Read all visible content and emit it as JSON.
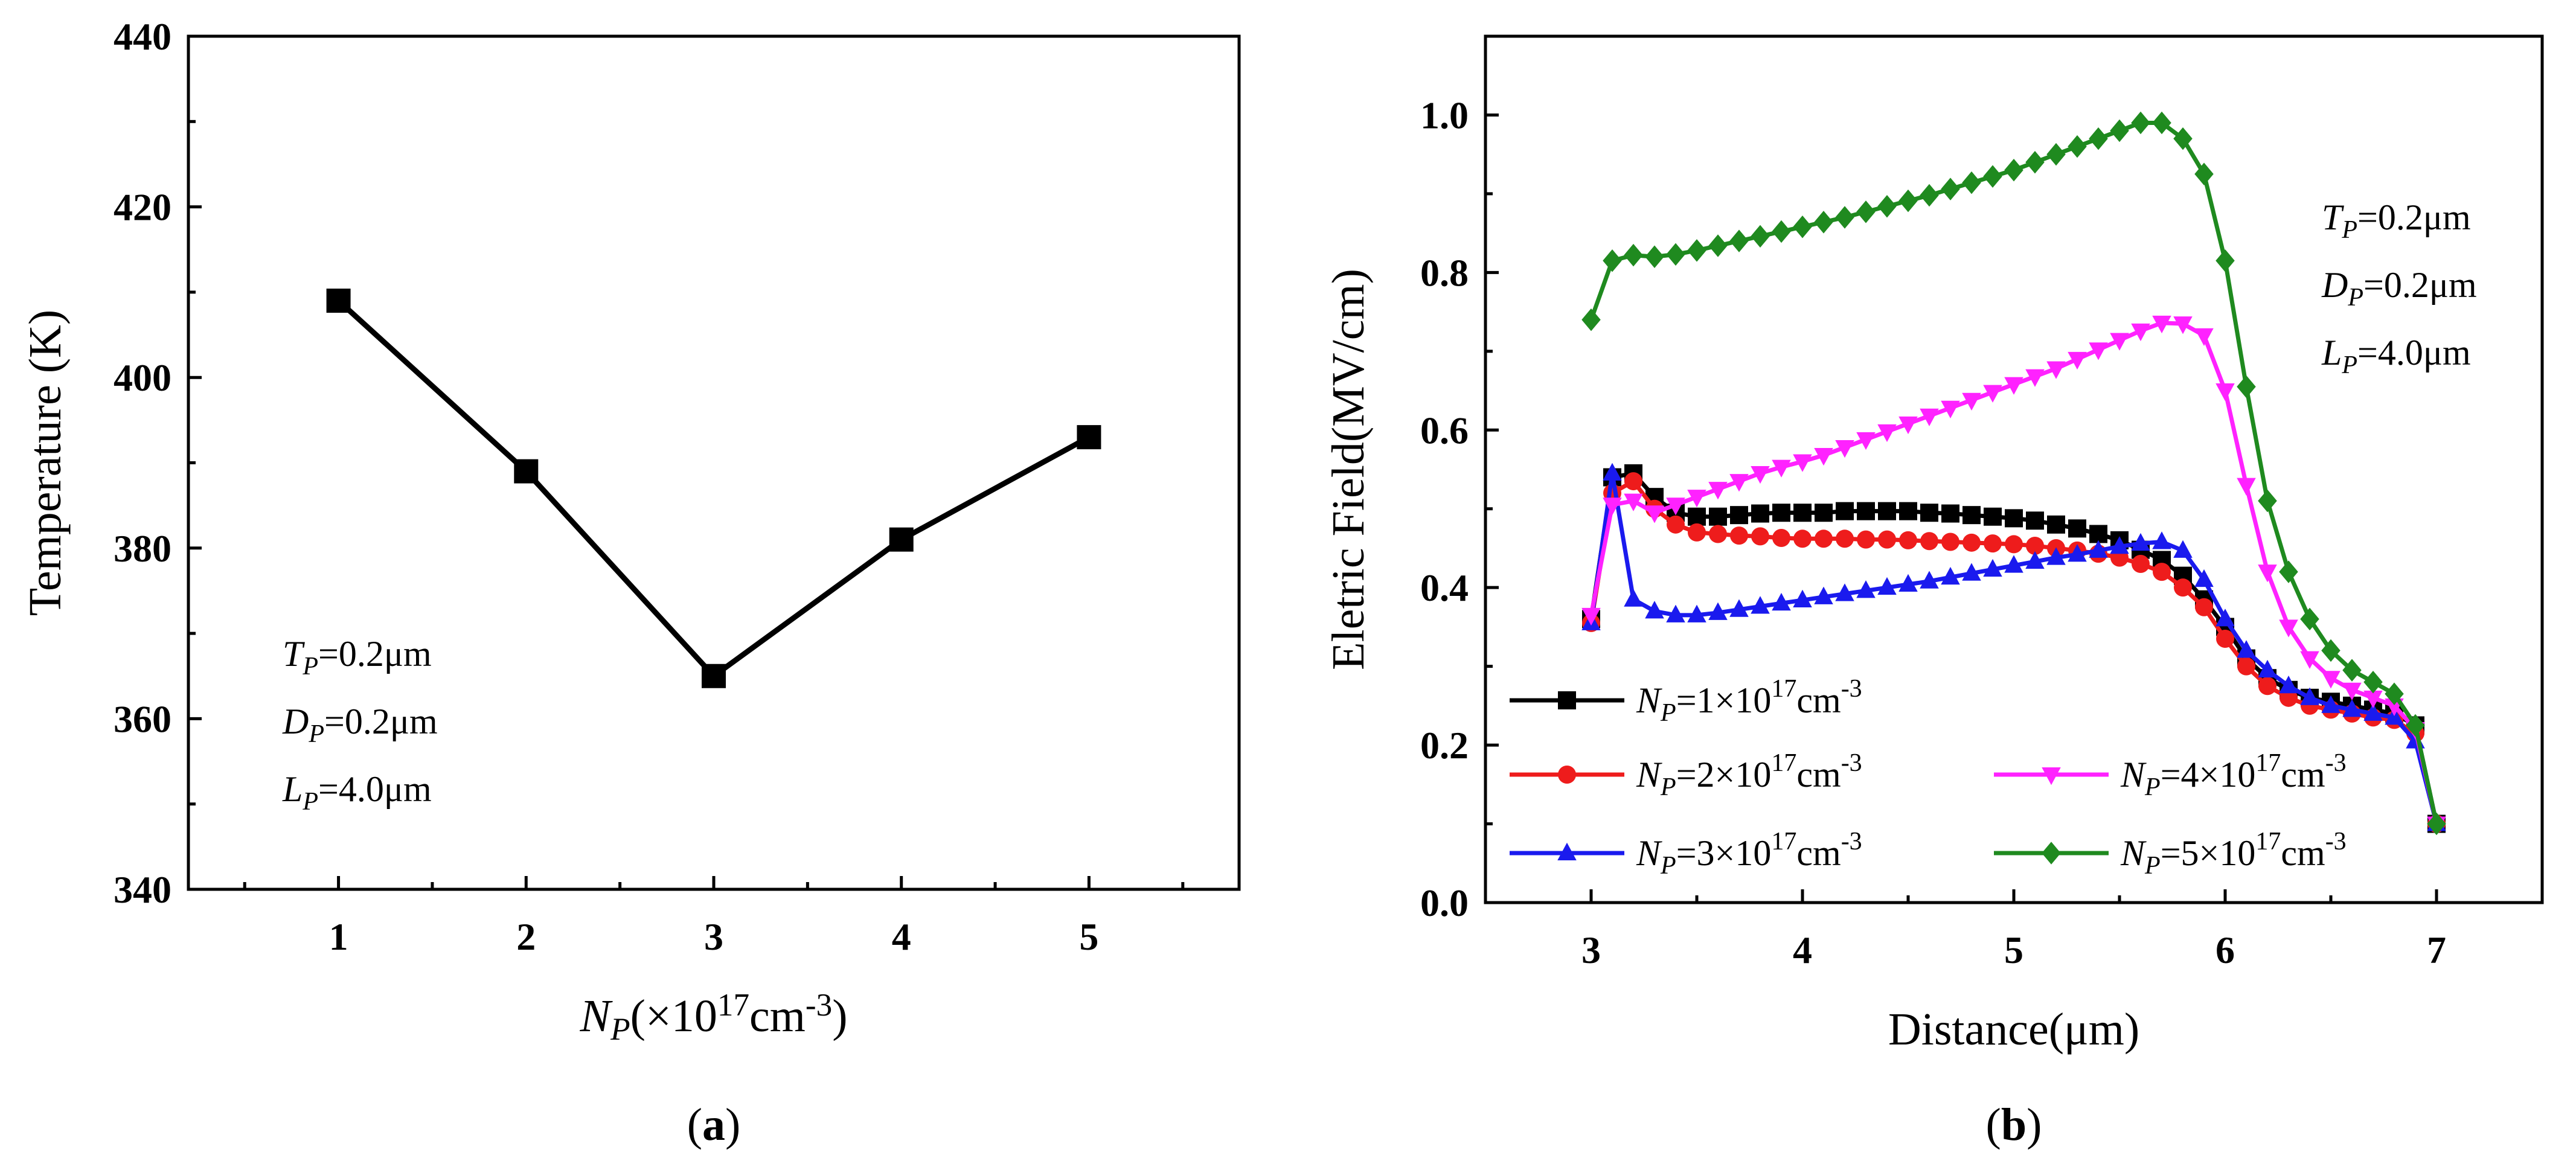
{
  "panels": {
    "a": {
      "label": "(a)"
    },
    "b": {
      "label": "(b)"
    }
  },
  "chart_data": [
    {
      "type": "line",
      "panel": "a",
      "xlabel": "N_P(×10^17cm^-3)",
      "ylabel": "Temperature (K)",
      "xlim": [
        0.2,
        5.8
      ],
      "ylim": [
        340,
        440
      ],
      "xticks": [
        1,
        2,
        3,
        4,
        5
      ],
      "yticks": [
        340,
        360,
        380,
        400,
        420,
        440
      ],
      "grid": false,
      "annotations": [
        "T_P=0.2μm",
        "D_P=0.2μm",
        "L_P=4.0μm"
      ],
      "series": [
        {
          "color": "#000000",
          "marker": "square",
          "x": [
            1,
            2,
            3,
            4,
            5
          ],
          "y": [
            409,
            389,
            365,
            381,
            393
          ]
        }
      ]
    },
    {
      "type": "line",
      "panel": "b",
      "xlabel": "Distance(μm)",
      "ylabel": "Eletric Field(MV/cm)",
      "xlim": [
        2.5,
        7.5
      ],
      "ylim": [
        0.0,
        1.1
      ],
      "xticks": [
        3,
        4,
        5,
        6,
        7
      ],
      "yticks": [
        0.0,
        0.2,
        0.4,
        0.6,
        0.8,
        1.0
      ],
      "grid": false,
      "legend_position": "bottom-left",
      "annotations": [
        "T_P=0.2μm",
        "D_P=0.2μm",
        "L_P=4.0μm"
      ],
      "x": [
        3.0,
        3.1,
        3.2,
        3.3,
        3.4,
        3.5,
        3.6,
        3.7,
        3.8,
        3.9,
        4.0,
        4.1,
        4.2,
        4.3,
        4.4,
        4.5,
        4.6,
        4.7,
        4.8,
        4.9,
        5.0,
        5.1,
        5.2,
        5.3,
        5.4,
        5.5,
        5.6,
        5.7,
        5.8,
        5.9,
        6.0,
        6.1,
        6.2,
        6.3,
        6.4,
        6.5,
        6.6,
        6.7,
        6.8,
        6.9,
        7.0
      ],
      "series": [
        {
          "name": "N_P=1×10^17cm^-3",
          "color": "#000000",
          "marker": "square",
          "values": [
            0.36,
            0.54,
            0.545,
            0.515,
            0.495,
            0.49,
            0.49,
            0.492,
            0.494,
            0.495,
            0.495,
            0.495,
            0.497,
            0.497,
            0.497,
            0.497,
            0.495,
            0.494,
            0.492,
            0.49,
            0.488,
            0.485,
            0.48,
            0.475,
            0.468,
            0.46,
            0.448,
            0.435,
            0.415,
            0.385,
            0.35,
            0.31,
            0.285,
            0.27,
            0.26,
            0.255,
            0.25,
            0.245,
            0.24,
            0.225,
            0.1
          ]
        },
        {
          "name": "N_P=2×10^17cm^-3",
          "color": "#ee1c1c",
          "marker": "circle",
          "values": [
            0.355,
            0.52,
            0.535,
            0.5,
            0.48,
            0.47,
            0.468,
            0.466,
            0.465,
            0.463,
            0.462,
            0.462,
            0.462,
            0.461,
            0.461,
            0.46,
            0.459,
            0.458,
            0.457,
            0.456,
            0.455,
            0.453,
            0.45,
            0.447,
            0.443,
            0.438,
            0.43,
            0.42,
            0.4,
            0.375,
            0.335,
            0.3,
            0.275,
            0.26,
            0.25,
            0.245,
            0.24,
            0.235,
            0.232,
            0.215,
            0.1
          ]
        },
        {
          "name": "N_P=3×10^17cm^-3",
          "color": "#1a1aee",
          "marker": "triangle-up",
          "values": [
            0.355,
            0.545,
            0.385,
            0.37,
            0.365,
            0.365,
            0.368,
            0.372,
            0.376,
            0.38,
            0.384,
            0.388,
            0.392,
            0.396,
            0.4,
            0.404,
            0.408,
            0.413,
            0.418,
            0.423,
            0.428,
            0.433,
            0.438,
            0.442,
            0.447,
            0.452,
            0.456,
            0.458,
            0.447,
            0.41,
            0.36,
            0.32,
            0.295,
            0.275,
            0.26,
            0.25,
            0.245,
            0.24,
            0.235,
            0.205,
            0.1
          ]
        },
        {
          "name": "N_P=4×10^17cm^-3",
          "color": "#ff22ff",
          "marker": "triangle-down",
          "values": [
            0.365,
            0.505,
            0.51,
            0.495,
            0.505,
            0.515,
            0.525,
            0.535,
            0.545,
            0.553,
            0.56,
            0.568,
            0.578,
            0.588,
            0.598,
            0.608,
            0.618,
            0.628,
            0.638,
            0.648,
            0.658,
            0.668,
            0.678,
            0.69,
            0.702,
            0.714,
            0.726,
            0.736,
            0.735,
            0.72,
            0.65,
            0.53,
            0.42,
            0.35,
            0.31,
            0.285,
            0.27,
            0.26,
            0.25,
            0.22,
            0.1
          ]
        },
        {
          "name": "N_P=5×10^17cm^-3",
          "color": "#1f8a1f",
          "marker": "diamond",
          "values": [
            0.74,
            0.815,
            0.822,
            0.82,
            0.823,
            0.828,
            0.834,
            0.84,
            0.846,
            0.852,
            0.858,
            0.864,
            0.87,
            0.877,
            0.884,
            0.891,
            0.898,
            0.906,
            0.914,
            0.922,
            0.93,
            0.94,
            0.95,
            0.96,
            0.97,
            0.98,
            0.99,
            0.99,
            0.97,
            0.925,
            0.815,
            0.655,
            0.51,
            0.42,
            0.36,
            0.32,
            0.295,
            0.28,
            0.265,
            0.225,
            0.1
          ]
        }
      ]
    }
  ]
}
